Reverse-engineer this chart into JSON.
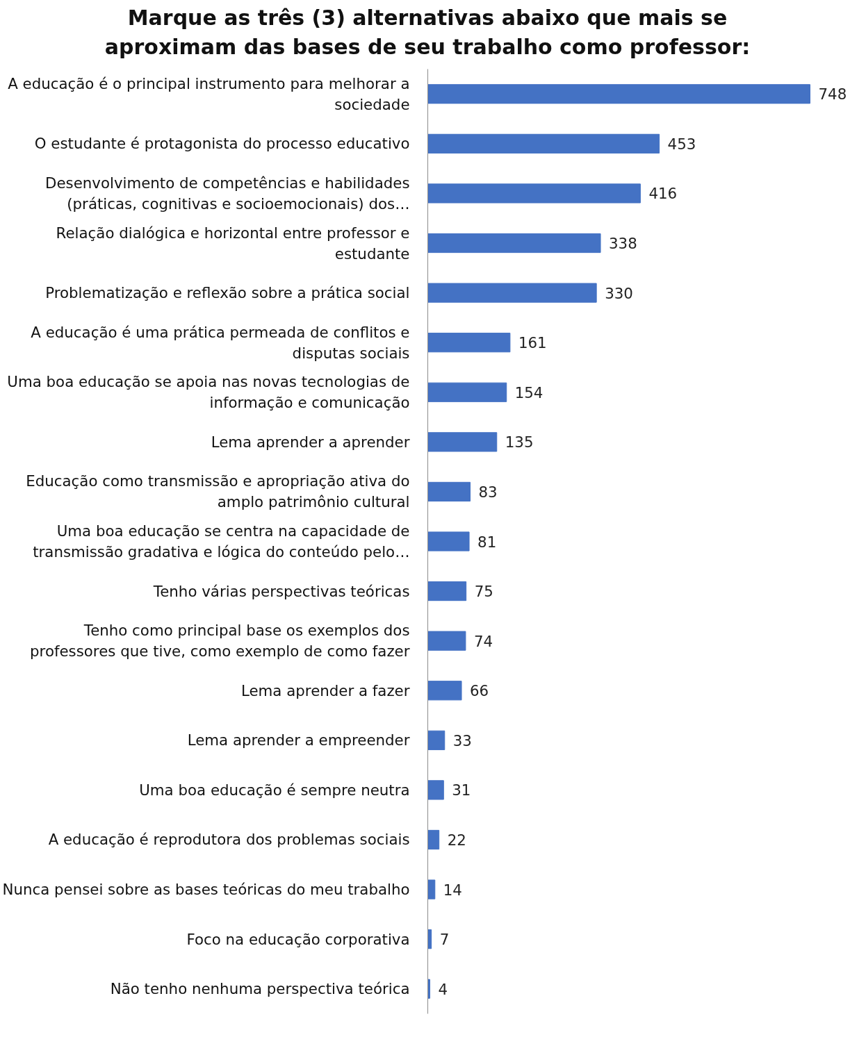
{
  "chart_data": {
    "type": "bar",
    "orientation": "horizontal",
    "title": "Marque as três (3) alternativas abaixo que mais se aproximam das bases de seu trabalho como professor:",
    "categories": [
      "A educação é o principal instrumento para melhorar a sociedade",
      "O estudante é protagonista do processo educativo",
      "Desenvolvimento de competências e habilidades (práticas, cognitivas e socioemocionais) dos…",
      "Relação dialógica e horizontal entre professor e estudante",
      "Problematização e reflexão sobre a prática social",
      "A educação é uma prática permeada de conflitos e disputas sociais",
      "Uma boa educação se apoia nas novas tecnologias de informação e comunicação",
      "Lema aprender a aprender",
      "Educação como transmissão e apropriação ativa do amplo patrimônio cultural",
      "Uma boa educação se centra na capacidade de transmissão gradativa e lógica do conteúdo pelo…",
      "Tenho várias perspectivas teóricas",
      "Tenho como principal base os exemplos dos professores que tive, como exemplo de como fazer",
      "Lema aprender a fazer",
      "Lema aprender a empreender",
      "Uma boa educação é sempre neutra",
      "A educação é reprodutora dos problemas sociais",
      "Nunca pensei sobre as bases teóricas do meu trabalho",
      "Foco na educação corporativa",
      "Não tenho nenhuma perspectiva teórica"
    ],
    "values": [
      748,
      453,
      416,
      338,
      330,
      161,
      154,
      135,
      83,
      81,
      75,
      74,
      66,
      33,
      31,
      22,
      14,
      7,
      4
    ],
    "color": "#4472c4",
    "data_labels": true,
    "grid": false
  }
}
